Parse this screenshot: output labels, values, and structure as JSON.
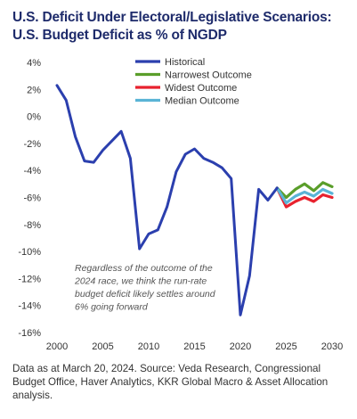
{
  "title": "U.S. Deficit Under Electoral/Legislative Scenarios: U.S. Budget Deficit as % of NGDP",
  "footnote": "Data as at March 20, 2024. Source: Veda Research, Congressional Budget Office, Haver Analytics, KKR Global Macro & Asset Allocation analysis.",
  "chart_data": {
    "type": "line",
    "xlim": [
      2000,
      2030
    ],
    "ylim": [
      -16,
      4
    ],
    "x_ticks": [
      "2000",
      "2005",
      "2010",
      "2015",
      "2020",
      "2025",
      "2030"
    ],
    "y_ticks": [
      "4%",
      "2%",
      "0%",
      "-2%",
      "-4%",
      "-6%",
      "-8%",
      "-10%",
      "-12%",
      "-14%",
      "-16%"
    ],
    "legend_position": "top-center",
    "annotation": [
      "Regardless of the outcome of the",
      "2024 race, we think the run-rate",
      "budget deficit likely settles around",
      "6% going forward"
    ],
    "series": [
      {
        "name": "Historical",
        "color": "#2b3fae",
        "x": [
          2000,
          2001,
          2002,
          2003,
          2004,
          2005,
          2006,
          2007,
          2008,
          2009,
          2010,
          2011,
          2012,
          2013,
          2014,
          2015,
          2016,
          2017,
          2018,
          2019,
          2020,
          2021,
          2022,
          2023,
          2024
        ],
        "y": [
          2.3,
          1.2,
          -1.5,
          -3.3,
          -3.4,
          -2.5,
          -1.8,
          -1.1,
          -3.1,
          -9.8,
          -8.7,
          -8.4,
          -6.7,
          -4.1,
          -2.8,
          -2.4,
          -3.1,
          -3.4,
          -3.8,
          -4.6,
          -14.7,
          -11.8,
          -5.4,
          -6.2,
          -5.3
        ]
      },
      {
        "name": "Narrowest Outcome",
        "color": "#5a9e2a",
        "x": [
          2024,
          2025,
          2026,
          2027,
          2028,
          2029,
          2030
        ],
        "y": [
          -5.3,
          -6.0,
          -5.4,
          -5.0,
          -5.5,
          -4.9,
          -5.2
        ]
      },
      {
        "name": "Widest Outcome",
        "color": "#e8222e",
        "x": [
          2024,
          2025,
          2026,
          2027,
          2028,
          2029,
          2030
        ],
        "y": [
          -5.3,
          -6.7,
          -6.3,
          -6.0,
          -6.3,
          -5.8,
          -6.0
        ]
      },
      {
        "name": "Median Outcome",
        "color": "#5ab4d6",
        "x": [
          2024,
          2025,
          2026,
          2027,
          2028,
          2029,
          2030
        ],
        "y": [
          -5.3,
          -6.4,
          -5.9,
          -5.6,
          -5.9,
          -5.4,
          -5.7
        ]
      }
    ]
  }
}
